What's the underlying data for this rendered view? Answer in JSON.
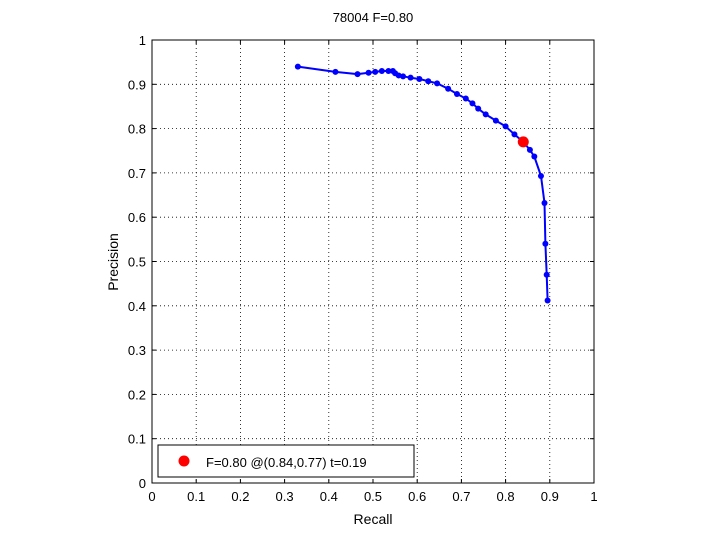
{
  "chart_data": {
    "type": "line",
    "title": "78004 F=0.80",
    "xlabel": "Recall",
    "ylabel": "Precision",
    "xlim": [
      0,
      1
    ],
    "ylim": [
      0,
      1
    ],
    "grid": true,
    "xticks": [
      "0",
      "0.1",
      "0.2",
      "0.3",
      "0.4",
      "0.5",
      "0.6",
      "0.7",
      "0.8",
      "0.9",
      "1"
    ],
    "yticks": [
      "0",
      "0.1",
      "0.2",
      "0.3",
      "0.4",
      "0.5",
      "0.6",
      "0.7",
      "0.8",
      "0.9",
      "1"
    ],
    "series": [
      {
        "color": "#0000ff",
        "points": [
          [
            0.33,
            0.94
          ],
          [
            0.415,
            0.928
          ],
          [
            0.465,
            0.923
          ],
          [
            0.49,
            0.926
          ],
          [
            0.505,
            0.928
          ],
          [
            0.52,
            0.93
          ],
          [
            0.535,
            0.93
          ],
          [
            0.545,
            0.93
          ],
          [
            0.55,
            0.925
          ],
          [
            0.558,
            0.92
          ],
          [
            0.568,
            0.918
          ],
          [
            0.585,
            0.915
          ],
          [
            0.605,
            0.912
          ],
          [
            0.625,
            0.907
          ],
          [
            0.645,
            0.902
          ],
          [
            0.67,
            0.89
          ],
          [
            0.69,
            0.878
          ],
          [
            0.71,
            0.868
          ],
          [
            0.725,
            0.857
          ],
          [
            0.738,
            0.845
          ],
          [
            0.755,
            0.832
          ],
          [
            0.778,
            0.818
          ],
          [
            0.8,
            0.805
          ],
          [
            0.82,
            0.787
          ],
          [
            0.84,
            0.77
          ],
          [
            0.855,
            0.752
          ],
          [
            0.865,
            0.737
          ],
          [
            0.88,
            0.693
          ],
          [
            0.888,
            0.632
          ],
          [
            0.89,
            0.54
          ],
          [
            0.893,
            0.47
          ],
          [
            0.895,
            0.412
          ]
        ]
      }
    ],
    "highlight": {
      "x": 0.84,
      "y": 0.77,
      "color": "#ff0000"
    },
    "legend": {
      "location": "bottom-left",
      "text": "F=0.80 @(0.84,0.77) t=0.19",
      "color": "#ff0000"
    }
  }
}
